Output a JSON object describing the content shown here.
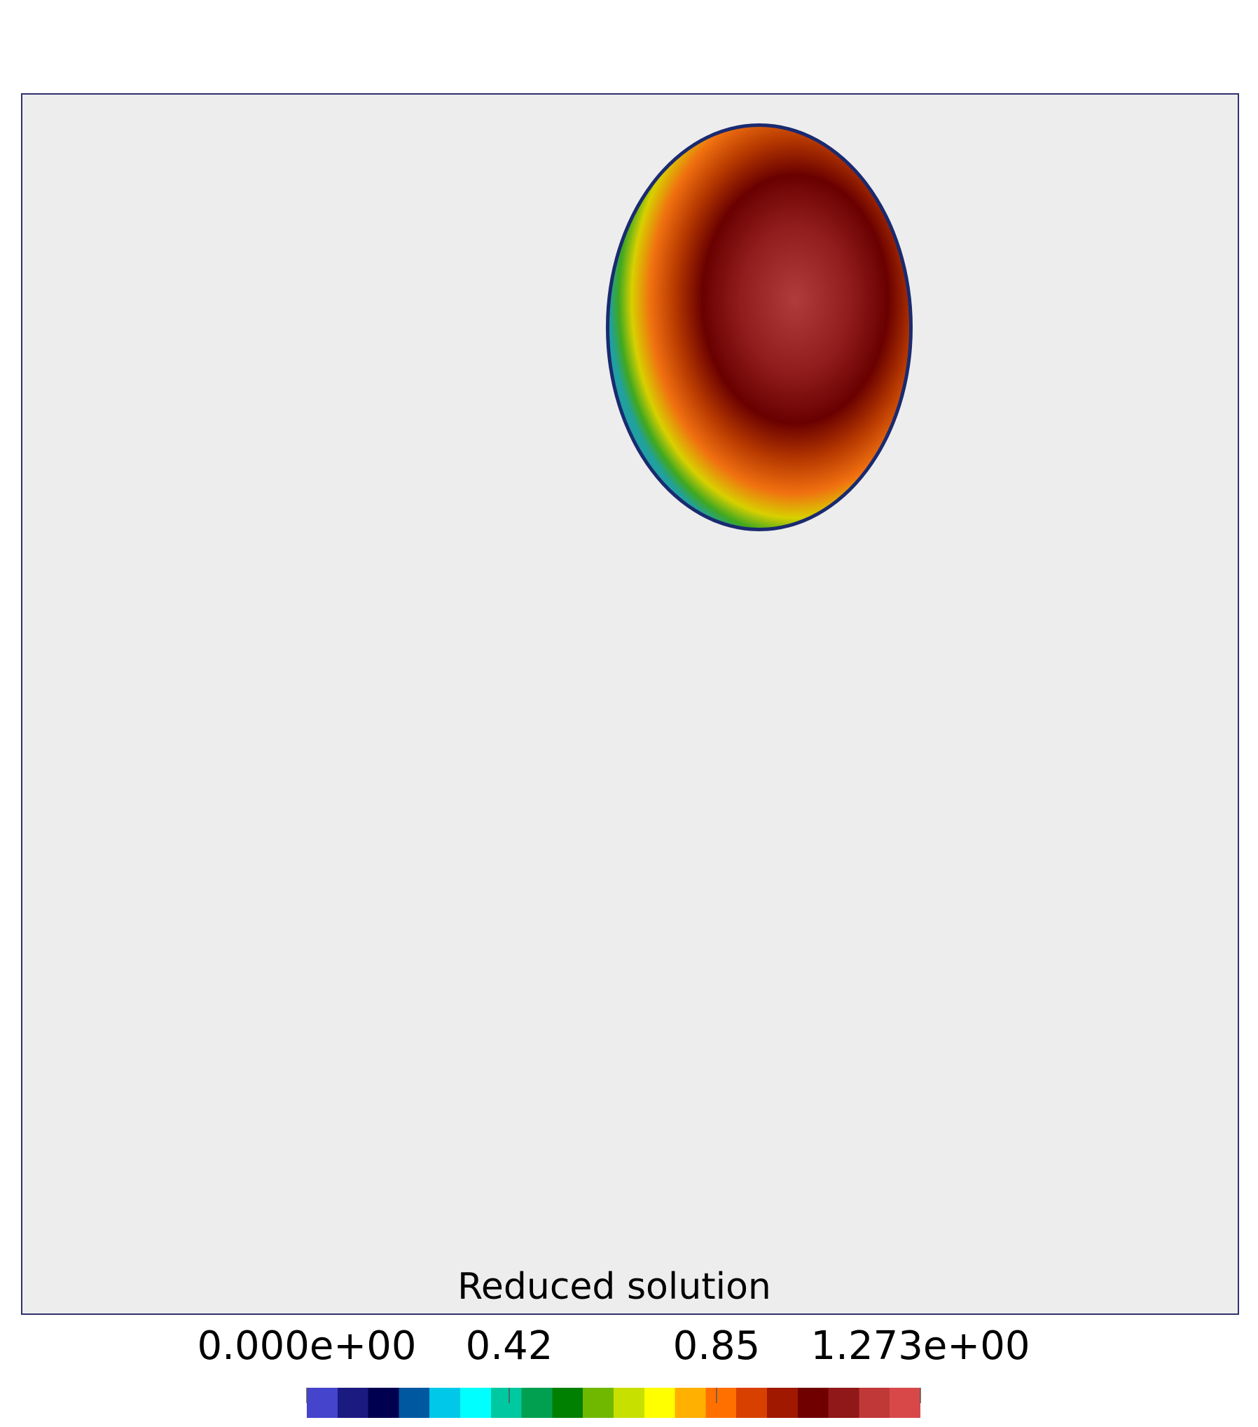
{
  "chart_data": {
    "type": "colorbar",
    "title": "Reduced solution",
    "xlim": [
      0,
      1.273
    ],
    "xticks": [
      {
        "value": 0,
        "label": "0.000e+00"
      },
      0.42,
      0.85,
      {
        "value": 1.273,
        "label": "1.273e+00"
      }
    ],
    "colormap": [
      "#4444cc",
      "#1a1a80",
      "#000050",
      "#0058a0",
      "#00c8e8",
      "#00ffff",
      "#00c8a0",
      "#00a050",
      "#008000",
      "#70b800",
      "#c8e000",
      "#ffff00",
      "#ffb000",
      "#ff7000",
      "#d84000",
      "#a01800",
      "#700000",
      "#901818",
      "#c03838",
      "#d84848"
    ]
  }
}
